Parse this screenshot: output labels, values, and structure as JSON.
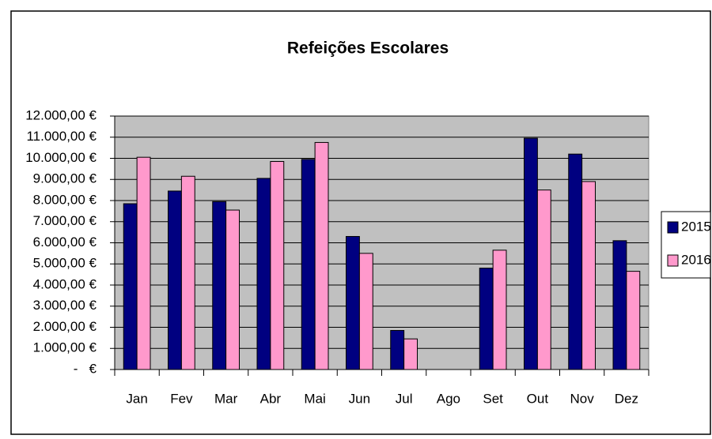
{
  "chart_data": {
    "type": "bar",
    "title": "Refeições Escolares",
    "categories": [
      "Jan",
      "Fev",
      "Mar",
      "Abr",
      "Mai",
      "Jun",
      "Jul",
      "Ago",
      "Set",
      "Out",
      "Nov",
      "Dez"
    ],
    "series": [
      {
        "name": "2015",
        "color": "#000080",
        "values": [
          7850,
          8450,
          7950,
          9050,
          9950,
          6300,
          1850,
          0,
          4800,
          10950,
          10200,
          6100
        ]
      },
      {
        "name": "2016",
        "color": "#ff99cc",
        "values": [
          10050,
          9150,
          7550,
          9850,
          10750,
          5500,
          1450,
          0,
          5650,
          8500,
          8900,
          4650
        ]
      }
    ],
    "ylim": [
      0,
      12000
    ],
    "yticks": [
      {
        "value": 0,
        "label": "-   €"
      },
      {
        "value": 1000,
        "label": "1.000,00 €"
      },
      {
        "value": 2000,
        "label": "2.000,00 €"
      },
      {
        "value": 3000,
        "label": "3.000,00 €"
      },
      {
        "value": 4000,
        "label": "4.000,00 €"
      },
      {
        "value": 5000,
        "label": "5.000,00 €"
      },
      {
        "value": 6000,
        "label": "6.000,00 €"
      },
      {
        "value": 7000,
        "label": "7.000,00 €"
      },
      {
        "value": 8000,
        "label": "8.000,00 €"
      },
      {
        "value": 9000,
        "label": "9.000,00 €"
      },
      {
        "value": 10000,
        "label": "10.000,00 €"
      },
      {
        "value": 11000,
        "label": "11.000,00 €"
      },
      {
        "value": 12000,
        "label": "12.000,00 €"
      }
    ],
    "grid": true,
    "legend": "right"
  }
}
